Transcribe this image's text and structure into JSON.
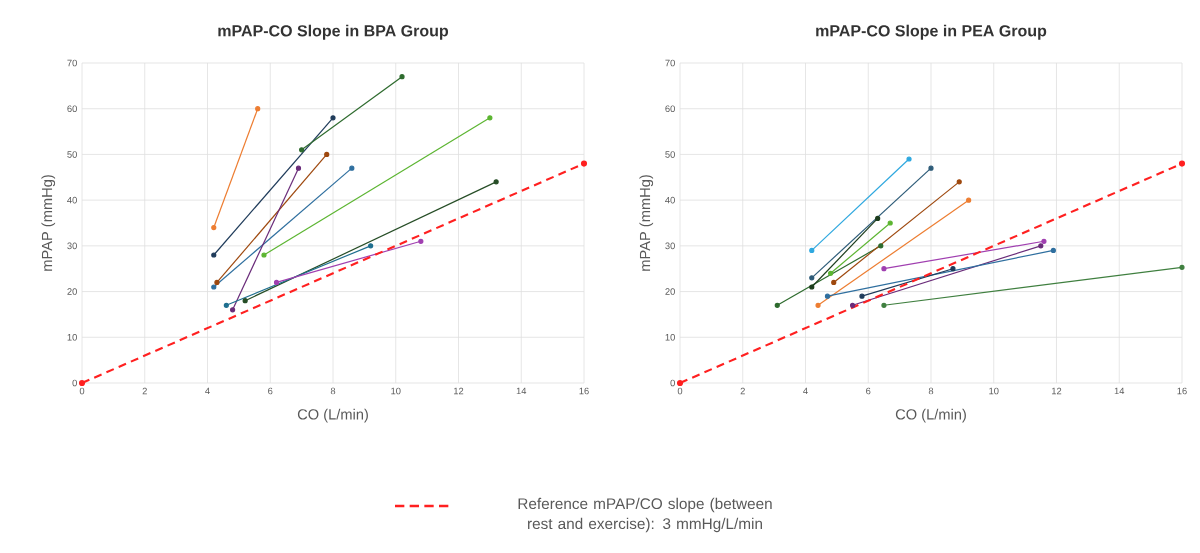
{
  "chart_data": [
    {
      "type": "line",
      "title": "mPAP-CO Slope in BPA Group",
      "xlabel": "CO (L/min)",
      "ylabel": "mPAP (mmHg)",
      "xlim": [
        0,
        16
      ],
      "ylim": [
        0,
        70
      ],
      "xticks": [
        0,
        2,
        4,
        6,
        8,
        10,
        12,
        14,
        16
      ],
      "yticks": [
        0,
        10,
        20,
        30,
        40,
        50,
        60,
        70
      ],
      "grid": true,
      "marker": "circle",
      "legend": "bottom",
      "series": [
        {
          "color": "#ed7d31",
          "x": [
            4.2,
            5.6
          ],
          "values": [
            34,
            60
          ]
        },
        {
          "color": "#1f3b5a",
          "x": [
            4.2,
            8.0
          ],
          "values": [
            28,
            58
          ]
        },
        {
          "color": "#2e6b2e",
          "x": [
            7.0,
            10.2
          ],
          "values": [
            51,
            67
          ]
        },
        {
          "color": "#9e480e",
          "x": [
            4.3,
            7.8
          ],
          "values": [
            22,
            50
          ]
        },
        {
          "color": "#2f6f9f",
          "x": [
            4.2,
            8.6
          ],
          "values": [
            21,
            47
          ]
        },
        {
          "color": "#6a2c7a",
          "x": [
            4.8,
            6.9
          ],
          "values": [
            16,
            47
          ]
        },
        {
          "color": "#5cb531",
          "x": [
            5.8,
            13.0
          ],
          "values": [
            28,
            58
          ]
        },
        {
          "color": "#264d26",
          "x": [
            5.2,
            13.2
          ],
          "values": [
            18,
            44
          ]
        },
        {
          "color": "#1f6f8f",
          "x": [
            4.6,
            9.2
          ],
          "values": [
            17,
            30
          ]
        },
        {
          "color": "#a03fb0",
          "x": [
            6.2,
            10.8
          ],
          "values": [
            22,
            31
          ]
        },
        {
          "name": "Reference mPAP/CO slope (between rest and exercise): 3 mmHg/L/min",
          "color": "#ff2020",
          "line_style": "dashed",
          "x": [
            0,
            16
          ],
          "values": [
            0,
            48
          ]
        }
      ]
    },
    {
      "type": "line",
      "title": "mPAP-CO Slope in PEA Group",
      "xlabel": "CO (L/min)",
      "ylabel": "mPAP (mmHg)",
      "xlim": [
        0,
        16
      ],
      "ylim": [
        0,
        70
      ],
      "xticks": [
        0,
        2,
        4,
        6,
        8,
        10,
        12,
        14,
        16
      ],
      "yticks": [
        0,
        10,
        20,
        30,
        40,
        50,
        60,
        70
      ],
      "grid": true,
      "marker": "circle",
      "series": [
        {
          "color": "#2ea8df",
          "x": [
            4.2,
            7.3
          ],
          "values": [
            29,
            49
          ]
        },
        {
          "color": "#2d5b78",
          "x": [
            4.2,
            8.0
          ],
          "values": [
            23,
            47
          ]
        },
        {
          "color": "#2e6b2e",
          "x": [
            3.1,
            6.4
          ],
          "values": [
            17,
            30
          ]
        },
        {
          "color": "#1d3d1d",
          "x": [
            4.2,
            6.3
          ],
          "values": [
            21,
            36
          ]
        },
        {
          "color": "#5cb531",
          "x": [
            4.8,
            6.7
          ],
          "values": [
            24,
            35
          ]
        },
        {
          "color": "#9e480e",
          "x": [
            4.9,
            8.9
          ],
          "values": [
            22,
            44
          ]
        },
        {
          "color": "#ed7d31",
          "x": [
            4.4,
            9.2
          ],
          "values": [
            17,
            40
          ]
        },
        {
          "color": "#a03fb0",
          "x": [
            6.5,
            11.6
          ],
          "values": [
            25,
            31
          ]
        },
        {
          "color": "#6a2c7a",
          "x": [
            5.5,
            11.5
          ],
          "values": [
            17,
            30
          ]
        },
        {
          "color": "#2f6f9f",
          "x": [
            4.7,
            11.9
          ],
          "values": [
            19,
            29
          ]
        },
        {
          "color": "#1f3b5a",
          "x": [
            5.8,
            8.7
          ],
          "values": [
            19,
            25
          ]
        },
        {
          "color": "#3f7f3f",
          "x": [
            6.5,
            16
          ],
          "values": [
            17,
            25.3
          ]
        },
        {
          "color": "#ff2020",
          "line_style": "dashed",
          "x": [
            0,
            16
          ],
          "values": [
            0,
            48
          ]
        }
      ]
    }
  ]
}
